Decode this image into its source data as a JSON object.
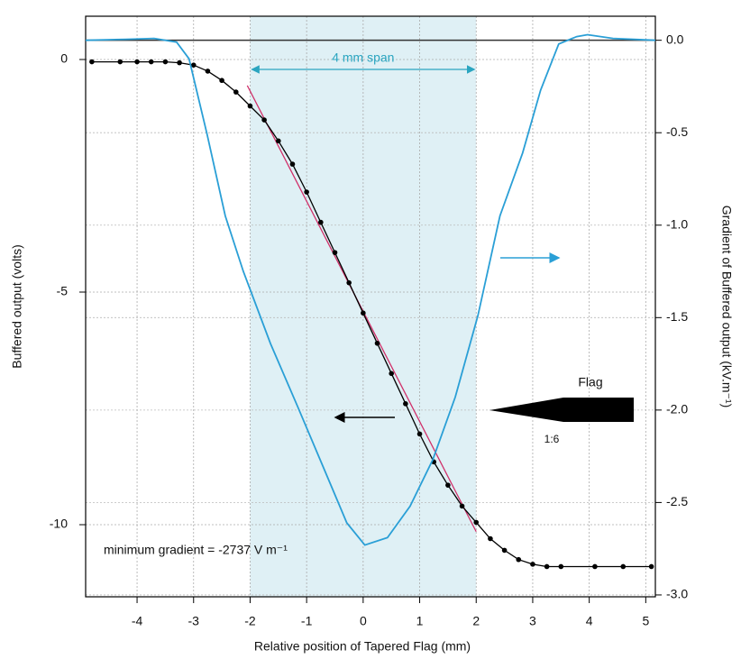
{
  "chart_data": {
    "type": "line",
    "xlabel": "Relative position of Tapered Flag (mm)",
    "ylabel": "Buffered output (volts)",
    "y2label": "Gradient of Buffered output (kV.m⁻¹)",
    "xlim": [
      -4.91,
      5.17
    ],
    "xticks": [
      -4,
      -3,
      -2,
      -1,
      0,
      1,
      2,
      3,
      4,
      5
    ],
    "ylim": [
      -11.55,
      0.93
    ],
    "yticks": [
      0,
      -5,
      -10
    ],
    "y2lim": [
      -3.01,
      0.13
    ],
    "y2ticks": [
      {
        "value": 0,
        "label": "0.0"
      },
      -0.5,
      {
        "value": -1,
        "label": "-1.0"
      },
      -1.5,
      {
        "value": -2,
        "label": "-2.0"
      },
      -2.5,
      {
        "value": -3,
        "label": "-3.0"
      }
    ],
    "grid": true,
    "span": {
      "x": [
        -2,
        2
      ],
      "label": "4 mm span",
      "color": "#dff0f5"
    },
    "annotations": [
      "minimum gradient =  -2737 V m⁻¹",
      "Flag",
      "1:6"
    ],
    "series": [
      {
        "color": "#000000",
        "axis": "y",
        "markers": true,
        "x": [
          -4.8,
          -4.3,
          -4.0,
          -3.75,
          -3.5,
          -3.25,
          -3.0,
          -2.75,
          -2.5,
          -2.25,
          -2.0,
          -1.75,
          -1.5,
          -1.25,
          -1.0,
          -0.75,
          -0.5,
          -0.25,
          0,
          0.25,
          0.5,
          0.75,
          1.0,
          1.25,
          1.5,
          1.75,
          2.0,
          2.25,
          2.5,
          2.75,
          3.0,
          3.25,
          3.5,
          4.1,
          4.6,
          5.1
        ],
        "values": [
          -0.05,
          -0.05,
          -0.05,
          -0.05,
          -0.05,
          -0.07,
          -0.12,
          -0.25,
          -0.45,
          -0.7,
          -1.0,
          -1.3,
          -1.75,
          -2.25,
          -2.85,
          -3.5,
          -4.15,
          -4.8,
          -5.45,
          -6.1,
          -6.75,
          -7.4,
          -8.05,
          -8.65,
          -9.15,
          -9.6,
          -9.95,
          -10.3,
          -10.55,
          -10.75,
          -10.85,
          -10.9,
          -10.9,
          -10.9,
          -10.9,
          -10.9
        ]
      },
      {
        "color": "#2a9fd6",
        "axis": "y2",
        "markers": false,
        "x": [
          -4.91,
          -4.2,
          -3.7,
          -3.3,
          -3.08,
          -2.76,
          -2.44,
          -2.12,
          -1.64,
          -1.16,
          -0.69,
          -0.29,
          0.03,
          0.43,
          0.83,
          1.23,
          1.63,
          2.03,
          2.42,
          2.82,
          3.14,
          3.46,
          3.78,
          3.97,
          4.42,
          5.17
        ],
        "values": [
          0,
          0.005,
          0.01,
          -0.01,
          -0.1,
          -0.51,
          -0.95,
          -1.25,
          -1.64,
          -1.98,
          -2.32,
          -2.61,
          -2.73,
          -2.69,
          -2.52,
          -2.27,
          -1.93,
          -1.49,
          -0.95,
          -0.61,
          -0.27,
          -0.02,
          0.02,
          0.03,
          0.01,
          0
        ]
      }
    ],
    "fit": {
      "x": [
        -2.05,
        2.0
      ],
      "values": [
        -0.56,
        -10.15
      ],
      "color": "#d0306a"
    }
  }
}
